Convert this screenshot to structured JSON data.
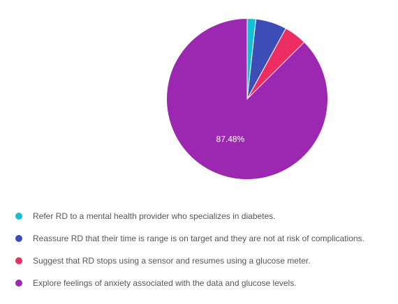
{
  "chart_data": {
    "type": "pie",
    "start_angle_deg": 0,
    "direction": "clockwise",
    "slices": [
      {
        "label": "Refer RD to a mental health provider who specializes in diabetes.",
        "value": 1.74,
        "color": "#12c2d4",
        "display": ""
      },
      {
        "label": "Reassure RD that their time is range is on target and they are not at risk of complications.",
        "value": 6.23,
        "color": "#3d4db7",
        "display": ""
      },
      {
        "label": "Suggest that RD stops using a sensor and resumes using a glucose meter.",
        "value": 4.55,
        "color": "#ec2d62",
        "display": ""
      },
      {
        "label": "Explore feelings of anxiety associated with the data and glucose levels.",
        "value": 87.48,
        "color": "#9c27b0",
        "display": "87.48%"
      }
    ],
    "legend_position": "bottom"
  }
}
